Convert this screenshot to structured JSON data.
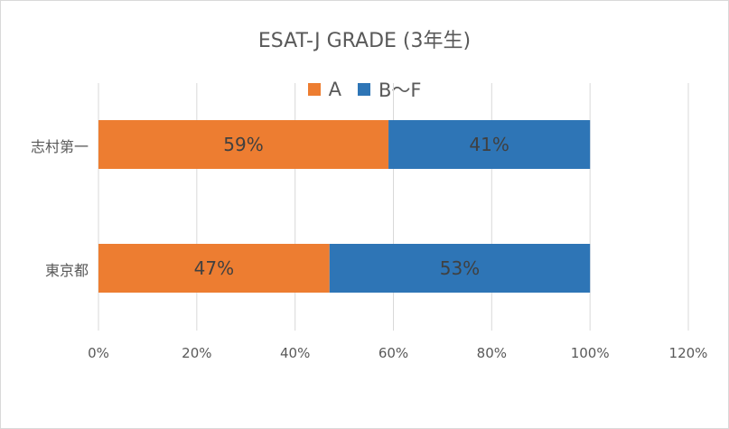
{
  "chart_data": {
    "type": "bar",
    "orientation": "horizontal",
    "stacked": true,
    "title": "ESAT-J GRADE (3年生)",
    "categories": [
      "志村第一",
      "東京都"
    ],
    "series": [
      {
        "name": "A",
        "color": "#ED7D31",
        "values": [
          59,
          47
        ],
        "labels": [
          "59%",
          "47%"
        ]
      },
      {
        "name": "B〜F",
        "color": "#2E75B6",
        "values": [
          41,
          53
        ],
        "labels": [
          "41%",
          "53%"
        ]
      }
    ],
    "xlim": [
      0,
      120
    ],
    "x_ticks": [
      "0%",
      "20%",
      "40%",
      "60%",
      "80%",
      "100%",
      "120%"
    ],
    "grid": true,
    "legend_position": "top"
  }
}
